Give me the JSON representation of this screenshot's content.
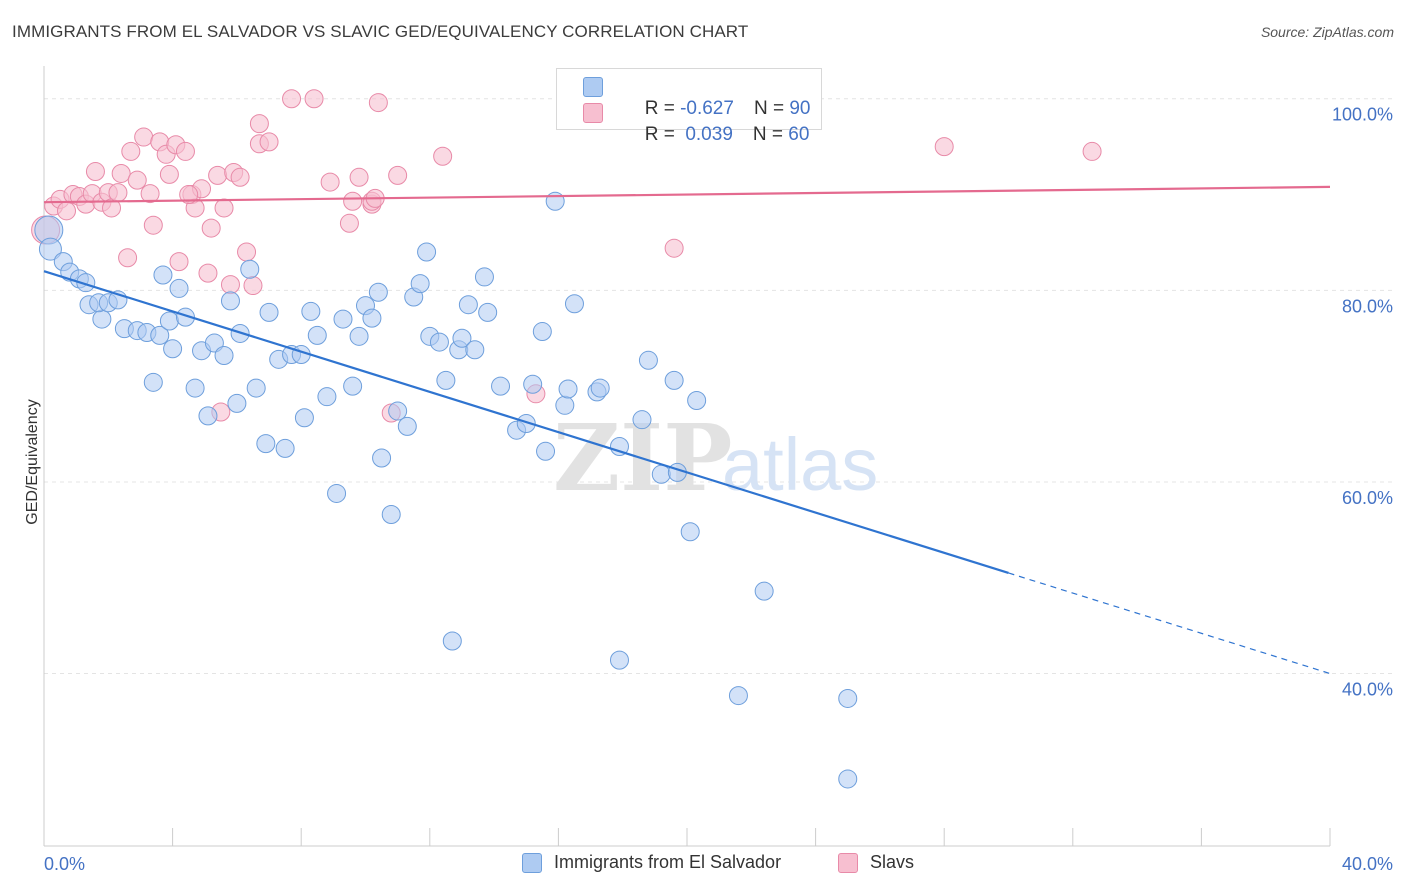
{
  "title": "IMMIGRANTS FROM EL SALVADOR VS SLAVIC GED/EQUIVALENCY CORRELATION CHART",
  "source": "Source: ZipAtlas.com",
  "watermark": {
    "zip": "ZIP",
    "atlas": "atlas"
  },
  "stats": {
    "blue": {
      "r_label": "R = ",
      "r_value": "-0.627",
      "n_label": "N = ",
      "n_value": "90"
    },
    "pink": {
      "r_label": "R = ",
      "r_value": " 0.039",
      "n_label": "N = ",
      "n_value": "60"
    }
  },
  "legend": {
    "blue_label": "Immigrants from El Salvador",
    "pink_label": "Slavs"
  },
  "colors": {
    "blue_fill": "#aecbf2",
    "blue_stroke": "#6e9fdc",
    "blue_line": "#2f74d0",
    "pink_fill": "#f7bfd0",
    "pink_stroke": "#e88aa8",
    "pink_line": "#e46a8f",
    "axis_label": "#4472c4",
    "grid": "#e4e4e4"
  },
  "chart_data": {
    "type": "scatter",
    "title": "IMMIGRANTS FROM EL SALVADOR VS SLAVIC GED/EQUIVALENCY CORRELATION CHART",
    "xlabel": "",
    "ylabel": "GED/Equivalency",
    "xlim": [
      0,
      40
    ],
    "ylim": [
      22,
      103
    ],
    "x_tick_labels": [
      "0.0%",
      "40.0%"
    ],
    "y_ticks": [
      40,
      60,
      80,
      100
    ],
    "y_tick_labels": [
      "40.0%",
      "60.0%",
      "80.0%",
      "100.0%"
    ],
    "grid": true,
    "legend_position": "bottom-center",
    "series": [
      {
        "name": "Immigrants from El Salvador",
        "r": -0.627,
        "n": 90,
        "trend": {
          "x0": 0.0,
          "y0": 82.0,
          "x1": 30.0,
          "y1": 50.5,
          "dashed_to_x": 40.0,
          "dashed_to_y": 40.0
        },
        "points": [
          [
            0.15,
            86.3
          ],
          [
            0.2,
            84.3
          ],
          [
            0.6,
            83.0
          ],
          [
            0.8,
            81.9
          ],
          [
            1.1,
            81.2
          ],
          [
            1.3,
            80.8
          ],
          [
            1.4,
            78.5
          ],
          [
            1.8,
            77.0
          ],
          [
            1.7,
            78.7
          ],
          [
            2.0,
            78.7
          ],
          [
            2.3,
            79.0
          ],
          [
            2.5,
            76.0
          ],
          [
            2.9,
            75.8
          ],
          [
            3.2,
            75.6
          ],
          [
            3.6,
            75.3
          ],
          [
            3.7,
            81.6
          ],
          [
            3.4,
            70.4
          ],
          [
            3.9,
            76.8
          ],
          [
            4.0,
            73.9
          ],
          [
            4.2,
            80.2
          ],
          [
            4.4,
            77.2
          ],
          [
            4.7,
            69.8
          ],
          [
            4.9,
            73.7
          ],
          [
            5.1,
            66.9
          ],
          [
            5.3,
            74.5
          ],
          [
            5.6,
            73.2
          ],
          [
            5.8,
            78.9
          ],
          [
            6.0,
            68.2
          ],
          [
            6.1,
            75.5
          ],
          [
            6.4,
            82.2
          ],
          [
            6.6,
            69.8
          ],
          [
            6.9,
            64.0
          ],
          [
            7.0,
            77.7
          ],
          [
            7.3,
            72.8
          ],
          [
            7.5,
            63.5
          ],
          [
            7.7,
            73.3
          ],
          [
            8.0,
            73.3
          ],
          [
            8.1,
            66.7
          ],
          [
            8.3,
            77.8
          ],
          [
            8.5,
            75.3
          ],
          [
            8.8,
            68.9
          ],
          [
            9.1,
            58.8
          ],
          [
            9.3,
            77.0
          ],
          [
            9.6,
            70.0
          ],
          [
            9.8,
            75.2
          ],
          [
            10.0,
            78.4
          ],
          [
            10.2,
            77.1
          ],
          [
            10.4,
            79.8
          ],
          [
            10.5,
            62.5
          ],
          [
            10.8,
            56.6
          ],
          [
            11.0,
            67.4
          ],
          [
            11.3,
            65.8
          ],
          [
            11.5,
            79.3
          ],
          [
            11.7,
            80.7
          ],
          [
            11.9,
            84.0
          ],
          [
            12.0,
            75.2
          ],
          [
            12.3,
            74.6
          ],
          [
            12.5,
            70.6
          ],
          [
            12.7,
            43.4
          ],
          [
            12.9,
            73.8
          ],
          [
            13.0,
            75.0
          ],
          [
            13.2,
            78.5
          ],
          [
            13.4,
            73.8
          ],
          [
            13.7,
            81.4
          ],
          [
            13.8,
            77.7
          ],
          [
            14.2,
            70.0
          ],
          [
            14.7,
            65.4
          ],
          [
            15.0,
            66.1
          ],
          [
            15.2,
            70.2
          ],
          [
            15.5,
            75.7
          ],
          [
            15.6,
            63.2
          ],
          [
            15.9,
            89.3
          ],
          [
            16.2,
            68.0
          ],
          [
            16.3,
            69.7
          ],
          [
            16.5,
            78.6
          ],
          [
            17.2,
            69.4
          ],
          [
            17.3,
            69.8
          ],
          [
            17.9,
            41.4
          ],
          [
            17.9,
            63.7
          ],
          [
            18.6,
            66.5
          ],
          [
            18.8,
            72.7
          ],
          [
            19.2,
            60.8
          ],
          [
            19.6,
            70.6
          ],
          [
            20.1,
            54.8
          ],
          [
            20.3,
            68.5
          ],
          [
            21.6,
            37.7
          ],
          [
            22.4,
            48.6
          ],
          [
            25.0,
            37.4
          ],
          [
            25.0,
            29.0
          ],
          [
            19.7,
            61.0
          ]
        ]
      },
      {
        "name": "Slavs",
        "r": 0.039,
        "n": 60,
        "trend": {
          "x0": 0.0,
          "y0": 89.2,
          "x1": 40.0,
          "y1": 90.8
        },
        "points": [
          [
            0.05,
            86.3
          ],
          [
            0.3,
            88.8
          ],
          [
            0.5,
            89.5
          ],
          [
            0.7,
            88.3
          ],
          [
            0.9,
            90.0
          ],
          [
            1.1,
            89.8
          ],
          [
            1.3,
            89.0
          ],
          [
            1.5,
            90.1
          ],
          [
            1.6,
            92.4
          ],
          [
            1.8,
            89.2
          ],
          [
            2.0,
            90.2
          ],
          [
            2.1,
            88.6
          ],
          [
            2.3,
            90.2
          ],
          [
            2.4,
            92.2
          ],
          [
            2.6,
            83.4
          ],
          [
            2.7,
            94.5
          ],
          [
            2.9,
            91.5
          ],
          [
            3.1,
            96.0
          ],
          [
            3.3,
            90.1
          ],
          [
            3.4,
            86.8
          ],
          [
            3.6,
            95.5
          ],
          [
            3.8,
            94.2
          ],
          [
            3.9,
            92.1
          ],
          [
            4.1,
            95.2
          ],
          [
            4.2,
            83.0
          ],
          [
            4.4,
            94.5
          ],
          [
            4.6,
            90.0
          ],
          [
            4.7,
            88.6
          ],
          [
            4.9,
            90.6
          ],
          [
            5.1,
            81.8
          ],
          [
            5.2,
            86.5
          ],
          [
            5.4,
            92.0
          ],
          [
            5.5,
            67.3
          ],
          [
            5.6,
            88.6
          ],
          [
            5.8,
            80.6
          ],
          [
            5.9,
            92.3
          ],
          [
            6.1,
            91.8
          ],
          [
            6.3,
            84.0
          ],
          [
            6.5,
            80.5
          ],
          [
            6.7,
            95.3
          ],
          [
            6.7,
            97.4
          ],
          [
            7.0,
            95.5
          ],
          [
            7.7,
            100.0
          ],
          [
            8.4,
            100.0
          ],
          [
            8.9,
            91.3
          ],
          [
            9.5,
            87.0
          ],
          [
            9.6,
            89.3
          ],
          [
            9.8,
            91.8
          ],
          [
            10.2,
            89.0
          ],
          [
            10.2,
            89.3
          ],
          [
            10.4,
            99.6
          ],
          [
            10.8,
            67.2
          ],
          [
            11.0,
            92.0
          ],
          [
            12.4,
            94.0
          ],
          [
            15.3,
            69.2
          ],
          [
            19.6,
            84.4
          ],
          [
            28.0,
            95.0
          ],
          [
            32.6,
            94.5
          ],
          [
            10.3,
            89.6
          ],
          [
            4.5,
            90.0
          ]
        ]
      }
    ]
  }
}
